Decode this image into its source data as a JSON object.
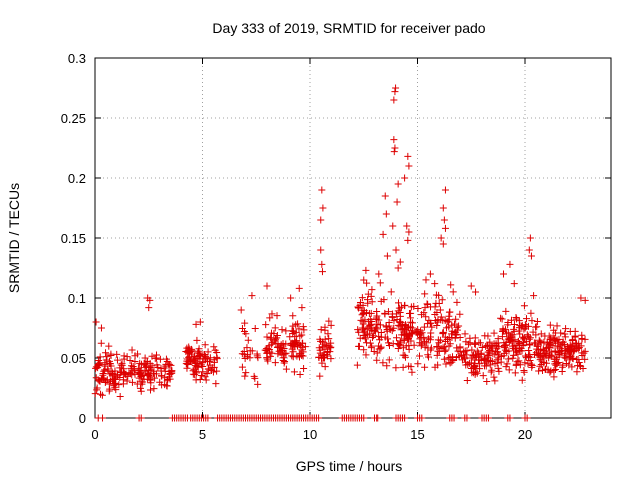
{
  "chart_data": {
    "type": "scatter",
    "title": "Day 333 of 2019, SRMTID for receiver pado",
    "xlabel": "GPS time / hours",
    "ylabel": "SRMTID / TECUs",
    "xlim": [
      0,
      24
    ],
    "ylim": [
      0,
      0.3
    ],
    "x_ticks": [
      0,
      5,
      10,
      15,
      20
    ],
    "y_ticks": [
      0,
      0.05,
      0.1,
      0.15,
      0.2,
      0.25,
      0.3
    ],
    "x_tick_labels": [
      "0",
      "5",
      "10",
      "15",
      "20"
    ],
    "y_tick_labels": [
      "0",
      "0.05",
      "0.1",
      "0.15",
      "0.2",
      "0.25",
      "0.3"
    ],
    "grid": true,
    "marker": "+",
    "marker_color": "#dd0000",
    "series": [
      {
        "name": "SRMTID",
        "clusters": [
          {
            "x": [
              0.0,
              2.2
            ],
            "y_center": 0.037,
            "y_spread": 0.018,
            "count": 130
          },
          {
            "x": [
              2.2,
              3.6
            ],
            "y_center": 0.04,
            "y_spread": 0.015,
            "count": 70
          },
          {
            "x": [
              4.2,
              5.7
            ],
            "y_center": 0.048,
            "y_spread": 0.016,
            "count": 95
          },
          {
            "x": [
              6.8,
              7.6
            ],
            "y_center": 0.055,
            "y_spread": 0.025,
            "count": 25
          },
          {
            "x": [
              7.9,
              9.8
            ],
            "y_center": 0.062,
            "y_spread": 0.022,
            "count": 110
          },
          {
            "x": [
              10.4,
              11.0
            ],
            "y_center": 0.058,
            "y_spread": 0.02,
            "count": 45
          },
          {
            "x": [
              12.2,
              14.5
            ],
            "y_center": 0.075,
            "y_spread": 0.03,
            "count": 160
          },
          {
            "x": [
              14.5,
              17.0
            ],
            "y_center": 0.07,
            "y_spread": 0.03,
            "count": 160
          },
          {
            "x": [
              17.0,
              18.8
            ],
            "y_center": 0.052,
            "y_spread": 0.018,
            "count": 110
          },
          {
            "x": [
              18.8,
              20.6
            ],
            "y_center": 0.065,
            "y_spread": 0.025,
            "count": 130
          },
          {
            "x": [
              20.6,
              22.8
            ],
            "y_center": 0.055,
            "y_spread": 0.018,
            "count": 170
          }
        ],
        "peaks": [
          {
            "x": 0.05,
            "y": 0.08
          },
          {
            "x": 0.3,
            "y": 0.075
          },
          {
            "x": 2.45,
            "y": 0.1
          },
          {
            "x": 2.55,
            "y": 0.098
          },
          {
            "x": 2.5,
            "y": 0.092
          },
          {
            "x": 4.7,
            "y": 0.078
          },
          {
            "x": 4.9,
            "y": 0.08
          },
          {
            "x": 6.8,
            "y": 0.09
          },
          {
            "x": 7.3,
            "y": 0.102
          },
          {
            "x": 8.0,
            "y": 0.11
          },
          {
            "x": 9.1,
            "y": 0.1
          },
          {
            "x": 9.5,
            "y": 0.108
          },
          {
            "x": 10.5,
            "y": 0.165
          },
          {
            "x": 10.55,
            "y": 0.19
          },
          {
            "x": 10.6,
            "y": 0.175
          },
          {
            "x": 10.5,
            "y": 0.14
          },
          {
            "x": 10.58,
            "y": 0.122
          },
          {
            "x": 10.55,
            "y": 0.128
          },
          {
            "x": 12.5,
            "y": 0.115
          },
          {
            "x": 12.6,
            "y": 0.123
          },
          {
            "x": 13.2,
            "y": 0.12
          },
          {
            "x": 13.4,
            "y": 0.153
          },
          {
            "x": 13.5,
            "y": 0.185
          },
          {
            "x": 13.55,
            "y": 0.17
          },
          {
            "x": 13.6,
            "y": 0.135
          },
          {
            "x": 13.9,
            "y": 0.265
          },
          {
            "x": 13.95,
            "y": 0.272
          },
          {
            "x": 13.98,
            "y": 0.275
          },
          {
            "x": 13.9,
            "y": 0.232
          },
          {
            "x": 13.95,
            "y": 0.225
          },
          {
            "x": 13.92,
            "y": 0.222
          },
          {
            "x": 14.1,
            "y": 0.195
          },
          {
            "x": 14.05,
            "y": 0.18
          },
          {
            "x": 13.85,
            "y": 0.16
          },
          {
            "x": 14.4,
            "y": 0.2
          },
          {
            "x": 14.55,
            "y": 0.218
          },
          {
            "x": 14.6,
            "y": 0.21
          },
          {
            "x": 14.5,
            "y": 0.16
          },
          {
            "x": 14.6,
            "y": 0.155
          },
          {
            "x": 14.55,
            "y": 0.148
          },
          {
            "x": 14.0,
            "y": 0.14
          },
          {
            "x": 14.1,
            "y": 0.125
          },
          {
            "x": 14.2,
            "y": 0.13
          },
          {
            "x": 15.6,
            "y": 0.12
          },
          {
            "x": 15.8,
            "y": 0.112
          },
          {
            "x": 16.2,
            "y": 0.175
          },
          {
            "x": 16.3,
            "y": 0.19
          },
          {
            "x": 16.25,
            "y": 0.165
          },
          {
            "x": 16.1,
            "y": 0.15
          },
          {
            "x": 16.2,
            "y": 0.145
          },
          {
            "x": 16.3,
            "y": 0.158
          },
          {
            "x": 17.5,
            "y": 0.11
          },
          {
            "x": 17.7,
            "y": 0.105
          },
          {
            "x": 19.3,
            "y": 0.128
          },
          {
            "x": 19.0,
            "y": 0.12
          },
          {
            "x": 19.5,
            "y": 0.112
          },
          {
            "x": 20.2,
            "y": 0.14
          },
          {
            "x": 20.25,
            "y": 0.15
          },
          {
            "x": 20.3,
            "y": 0.135
          },
          {
            "x": 20.4,
            "y": 0.102
          },
          {
            "x": 22.6,
            "y": 0.1
          },
          {
            "x": 22.8,
            "y": 0.098
          }
        ],
        "zero_points_x": [
          0.15,
          0.35,
          2.05,
          2.15,
          3.6,
          3.7,
          3.8,
          3.9,
          4.0,
          4.1,
          4.2,
          4.3,
          4.45,
          4.55,
          4.65,
          4.75,
          4.85,
          4.95,
          5.05,
          5.15,
          5.25,
          5.7,
          5.8,
          5.9,
          6.0,
          6.1,
          6.2,
          6.3,
          6.4,
          6.5,
          6.6,
          6.7,
          6.8,
          6.9,
          7.0,
          7.1,
          7.2,
          7.3,
          7.4,
          7.5,
          7.6,
          7.7,
          7.8,
          7.9,
          8.0,
          8.1,
          8.2,
          8.3,
          8.4,
          8.5,
          8.6,
          8.7,
          8.8,
          8.9,
          9.0,
          9.1,
          9.2,
          9.3,
          9.4,
          9.5,
          9.6,
          9.7,
          9.8,
          9.9,
          10.0,
          10.1,
          10.2,
          10.3,
          10.4,
          11.5,
          11.6,
          11.7,
          11.8,
          11.9,
          12.0,
          12.1,
          12.2,
          12.3,
          12.4,
          12.5,
          13.0,
          13.1,
          13.15,
          14.0,
          14.1,
          14.2,
          14.3,
          14.4,
          15.0,
          15.1,
          15.2,
          16.5,
          16.6,
          16.7,
          17.2,
          17.3,
          18.0,
          18.1,
          18.2,
          18.3,
          19.2,
          19.3,
          20.0,
          20.1
        ],
        "seed": 333
      }
    ]
  }
}
